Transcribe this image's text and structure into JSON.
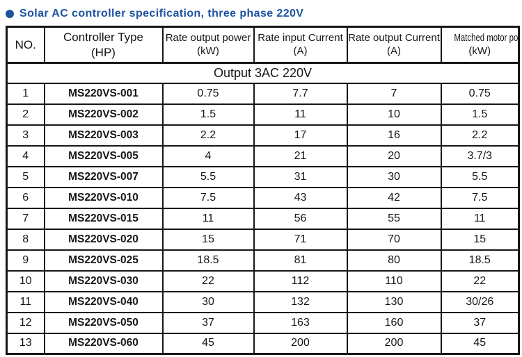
{
  "title": {
    "bullet_icon": "circle-bullet",
    "text": "Solar AC controller specification, three phase 220V",
    "color": "#1c53a0"
  },
  "table": {
    "columns": [
      {
        "line1": "NO.",
        "line2": ""
      },
      {
        "line1": "Controller Type",
        "line2": "(HP)"
      },
      {
        "line1": "Rate output power",
        "line2": "(kW)"
      },
      {
        "line1": "Rate input Current",
        "line2": "(A)"
      },
      {
        "line1": "Rate output Current",
        "line2": "(A)"
      },
      {
        "line1": "Matched motor power",
        "line2": "(kW)"
      }
    ],
    "group_header": "Output 3AC 220V",
    "rows": [
      [
        "1",
        "MS220VS-001",
        "0.75",
        "7.7",
        "7",
        "0.75"
      ],
      [
        "2",
        "MS220VS-002",
        "1.5",
        "11",
        "10",
        "1.5"
      ],
      [
        "3",
        "MS220VS-003",
        "2.2",
        "17",
        "16",
        "2.2"
      ],
      [
        "4",
        "MS220VS-005",
        "4",
        "21",
        "20",
        "3.7/3"
      ],
      [
        "5",
        "MS220VS-007",
        "5.5",
        "31",
        "30",
        "5.5"
      ],
      [
        "6",
        "MS220VS-010",
        "7.5",
        "43",
        "42",
        "7.5"
      ],
      [
        "7",
        "MS220VS-015",
        "11",
        "56",
        "55",
        "11"
      ],
      [
        "8",
        "MS220VS-020",
        "15",
        "71",
        "70",
        "15"
      ],
      [
        "9",
        "MS220VS-025",
        "18.5",
        "81",
        "80",
        "18.5"
      ],
      [
        "10",
        "MS220VS-030",
        "22",
        "112",
        "110",
        "22"
      ],
      [
        "11",
        "MS220VS-040",
        "30",
        "132",
        "130",
        "30/26"
      ],
      [
        "12",
        "MS220VS-050",
        "37",
        "163",
        "160",
        "37"
      ],
      [
        "13",
        "MS220VS-060",
        "45",
        "200",
        "200",
        "45"
      ]
    ]
  }
}
